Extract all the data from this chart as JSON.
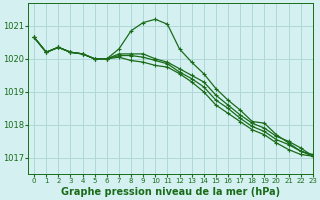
{
  "background_color": "#d4f0f0",
  "grid_color": "#b0d8d8",
  "line_color": "#1a6b1a",
  "marker": "+",
  "title": "Graphe pression niveau de la mer (hPa)",
  "ylim": [
    1016.5,
    1021.7
  ],
  "xlim": [
    -0.5,
    23
  ],
  "yticks": [
    1017,
    1018,
    1019,
    1020,
    1021
  ],
  "xticks": [
    0,
    1,
    2,
    3,
    4,
    5,
    6,
    7,
    8,
    9,
    10,
    11,
    12,
    13,
    14,
    15,
    16,
    17,
    18,
    19,
    20,
    21,
    22,
    23
  ],
  "series": [
    [
      1020.65,
      1020.2,
      1020.35,
      1020.2,
      1020.15,
      1020.0,
      1020.0,
      1020.3,
      1020.85,
      1021.1,
      1021.2,
      1021.05,
      1020.3,
      1019.9,
      1019.55,
      1019.1,
      1018.75,
      1018.45,
      1018.1,
      1018.05,
      1017.7,
      1017.45,
      1017.2,
      1017.1
    ],
    [
      1020.65,
      1020.2,
      1020.35,
      1020.2,
      1020.15,
      1020.0,
      1020.0,
      1020.15,
      1020.15,
      1020.15,
      1020.0,
      1019.9,
      1019.7,
      1019.5,
      1019.3,
      1018.9,
      1018.6,
      1018.3,
      1018.05,
      1017.9,
      1017.65,
      1017.5,
      1017.3,
      1017.05
    ],
    [
      1020.65,
      1020.2,
      1020.35,
      1020.2,
      1020.15,
      1020.0,
      1020.0,
      1020.1,
      1020.1,
      1020.05,
      1019.95,
      1019.85,
      1019.6,
      1019.4,
      1019.15,
      1018.75,
      1018.5,
      1018.2,
      1017.95,
      1017.8,
      1017.55,
      1017.4,
      1017.2,
      1017.05
    ],
    [
      1020.65,
      1020.2,
      1020.35,
      1020.2,
      1020.15,
      1020.0,
      1020.0,
      1020.05,
      1019.95,
      1019.9,
      1019.8,
      1019.75,
      1019.55,
      1019.3,
      1019.0,
      1018.6,
      1018.35,
      1018.1,
      1017.85,
      1017.7,
      1017.45,
      1017.25,
      1017.1,
      1017.05
    ]
  ]
}
